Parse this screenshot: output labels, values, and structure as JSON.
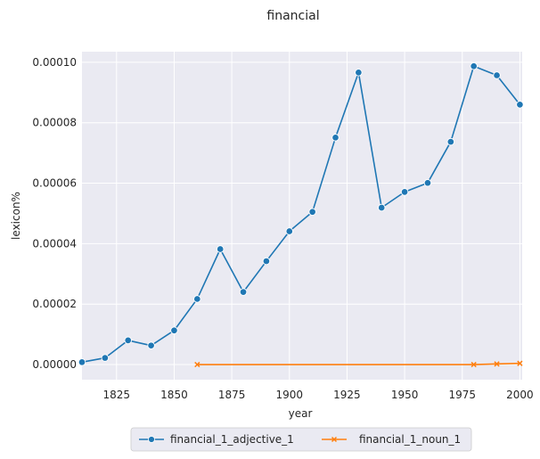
{
  "chart_data": {
    "type": "line",
    "title": "financial",
    "xlabel": "year",
    "ylabel": "lexicon%",
    "xlim": [
      1810,
      2001
    ],
    "ylim": [
      -5e-06,
      0.0001035
    ],
    "x_ticks": [
      1825,
      1850,
      1875,
      1900,
      1925,
      1950,
      1975,
      2000
    ],
    "y_ticks": [
      0.0,
      2e-05,
      4e-05,
      6e-05,
      8e-05,
      0.0001
    ],
    "y_tick_labels": [
      "0.00000",
      "0.00002",
      "0.00004",
      "0.00006",
      "0.00008",
      "0.00010"
    ],
    "grid": true,
    "legend_position": "bottom-center",
    "series": [
      {
        "name": "financial_1_adjective_1",
        "color": "#1f77b4",
        "marker": "circle",
        "x": [
          1810,
          1820,
          1830,
          1840,
          1850,
          1860,
          1870,
          1880,
          1890,
          1900,
          1910,
          1920,
          1930,
          1940,
          1950,
          1960,
          1970,
          1980,
          1990,
          2000
        ],
        "y": [
          8e-07,
          2.2e-06,
          8e-06,
          6.3e-06,
          1.13e-05,
          2.17e-05,
          3.82e-05,
          2.4e-05,
          3.42e-05,
          4.41e-05,
          5.05e-05,
          7.51e-05,
          9.66e-05,
          5.19e-05,
          5.71e-05,
          6.01e-05,
          7.37e-05,
          9.87e-05,
          9.57e-05,
          8.6e-05
        ]
      },
      {
        "name": "financial_1_noun_1",
        "color": "#ff7f0e",
        "marker": "x",
        "x": [
          1860,
          1980,
          1990,
          2000
        ],
        "y": [
          0.0,
          0.0,
          2e-07,
          4e-07
        ]
      }
    ]
  }
}
